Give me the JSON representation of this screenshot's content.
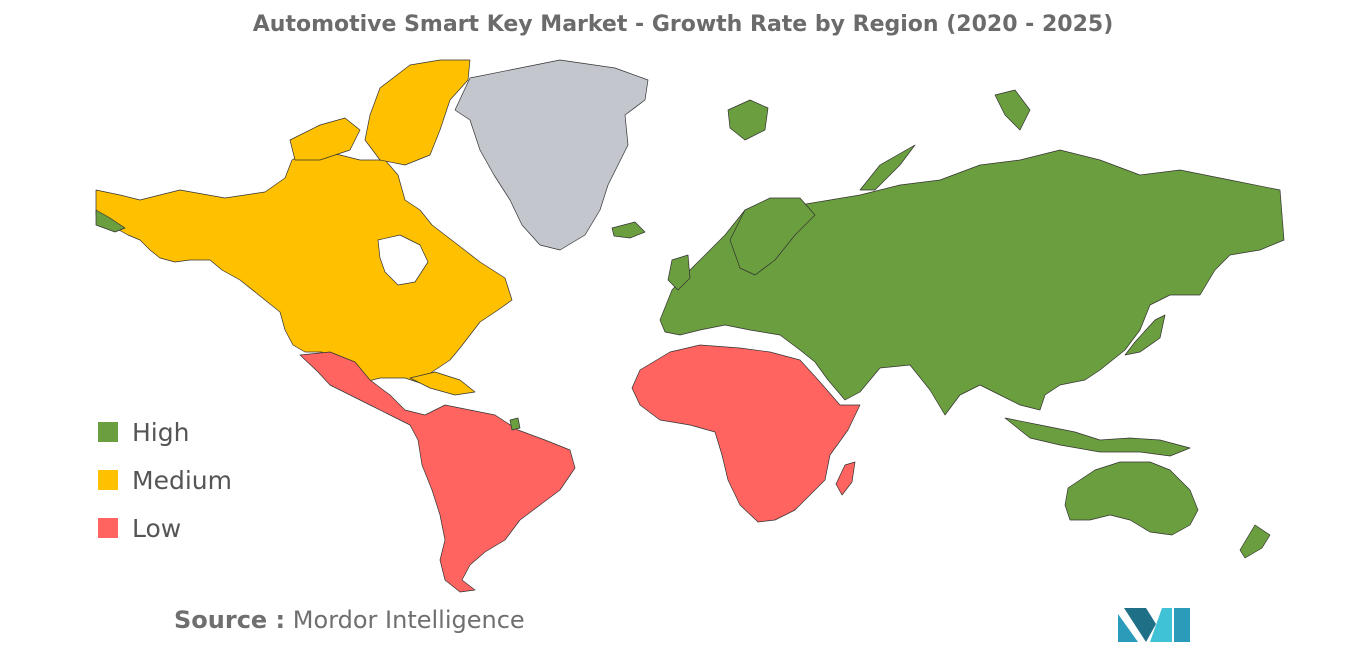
{
  "title": "Automotive Smart Key Market - Growth Rate by Region (2020 - 2025)",
  "legend": [
    {
      "label": "High",
      "color": "#6a9e3e"
    },
    {
      "label": "Medium",
      "color": "#ffc000"
    },
    {
      "label": "Low",
      "color": "#ff6461"
    }
  ],
  "regions": {
    "north_america": "Medium",
    "latin_america": "Low",
    "africa": "Low",
    "europe": "High",
    "asia_pacific": "High",
    "middle_east": "High",
    "greenland": "No data"
  },
  "colors": {
    "no_data": "#c3c6cc",
    "border": "#333333"
  },
  "source": {
    "prefix": "Source :",
    "name": "Mordor Intelligence"
  },
  "logo": {
    "name": "mordor-intelligence-logo"
  }
}
